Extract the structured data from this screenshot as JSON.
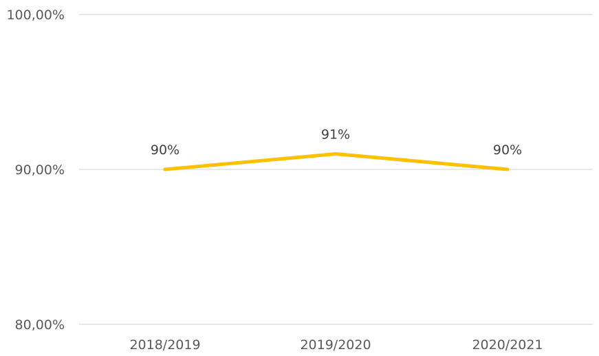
{
  "chart_data": {
    "type": "line",
    "categories": [
      "2018/2019",
      "2019/2020",
      "2020/2021"
    ],
    "series": [
      {
        "values": [
          0.9,
          0.91,
          0.9
        ],
        "data_labels": [
          "90%",
          "91%",
          "90%"
        ],
        "color": "#FFC000"
      }
    ],
    "ylim": [
      0.8,
      1.0
    ],
    "yticks": [
      {
        "value": 0.8,
        "label": "80,00%"
      },
      {
        "value": 0.9,
        "label": "90,00%"
      },
      {
        "value": 1.0,
        "label": "100,00%"
      }
    ],
    "grid": true,
    "legend": "none",
    "title": "",
    "xlabel": "",
    "ylabel": ""
  }
}
